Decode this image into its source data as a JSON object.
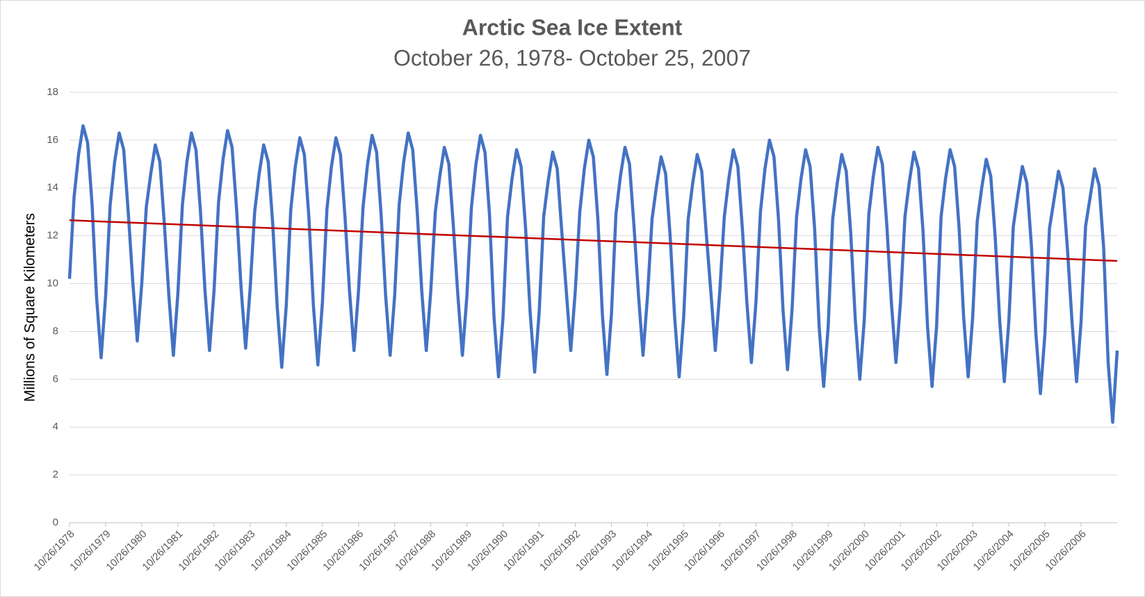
{
  "chart_data": {
    "type": "line",
    "title": "Arctic Sea Ice Extent",
    "subtitle": "October 26, 1978- October 25, 2007",
    "y_label": "Millions of Square Kilometers",
    "categories": [
      "10/26/1978",
      null,
      null,
      null,
      null,
      null,
      null,
      null,
      "10/26/1979",
      null,
      null,
      null,
      null,
      null,
      null,
      null,
      "10/26/1980",
      null,
      null,
      null,
      null,
      null,
      null,
      null,
      "10/26/1981",
      null,
      null,
      null,
      null,
      null,
      null,
      null,
      "10/26/1982",
      null,
      null,
      null,
      null,
      null,
      null,
      null,
      "10/26/1983",
      null,
      null,
      null,
      null,
      null,
      null,
      null,
      "10/26/1984",
      null,
      null,
      null,
      null,
      null,
      null,
      null,
      "10/26/1985",
      null,
      null,
      null,
      null,
      null,
      null,
      null,
      "10/26/1986",
      null,
      null,
      null,
      null,
      null,
      null,
      null,
      "10/26/1987",
      null,
      null,
      null,
      null,
      null,
      null,
      null,
      "10/26/1988",
      null,
      null,
      null,
      null,
      null,
      null,
      null,
      "10/26/1989",
      null,
      null,
      null,
      null,
      null,
      null,
      null,
      "10/26/1990",
      null,
      null,
      null,
      null,
      null,
      null,
      null,
      "10/26/1991",
      null,
      null,
      null,
      null,
      null,
      null,
      null,
      "10/26/1992",
      null,
      null,
      null,
      null,
      null,
      null,
      null,
      "10/26/1993",
      null,
      null,
      null,
      null,
      null,
      null,
      null,
      "10/26/1994",
      null,
      null,
      null,
      null,
      null,
      null,
      null,
      "10/26/1995",
      null,
      null,
      null,
      null,
      null,
      null,
      null,
      "10/26/1996",
      null,
      null,
      null,
      null,
      null,
      null,
      null,
      "10/26/1997",
      null,
      null,
      null,
      null,
      null,
      null,
      null,
      "10/26/1998",
      null,
      null,
      null,
      null,
      null,
      null,
      null,
      "10/26/1999",
      null,
      null,
      null,
      null,
      null,
      null,
      null,
      "10/26/2000",
      null,
      null,
      null,
      null,
      null,
      null,
      null,
      "10/26/2001",
      null,
      null,
      null,
      null,
      null,
      null,
      null,
      "10/26/2002",
      null,
      null,
      null,
      null,
      null,
      null,
      null,
      "10/26/2003",
      null,
      null,
      null,
      null,
      null,
      null,
      null,
      "10/26/2004",
      null,
      null,
      null,
      null,
      null,
      null,
      null,
      "10/26/2005",
      null,
      null,
      null,
      null,
      null,
      null,
      null,
      "10/26/2006",
      null,
      null,
      null,
      null,
      null,
      null,
      null,
      null
    ],
    "series": [
      {
        "color": "#4472c4",
        "values": [
          10.2,
          13.6,
          15.4,
          16.6,
          15.9,
          13.3,
          9.4,
          6.9,
          9.5,
          13.3,
          15.1,
          16.3,
          15.6,
          13.0,
          10.1,
          7.6,
          10.0,
          13.2,
          14.6,
          15.8,
          15.1,
          12.5,
          9.5,
          7.0,
          9.6,
          13.3,
          15.1,
          16.3,
          15.6,
          13.0,
          9.7,
          7.2,
          9.7,
          13.4,
          15.2,
          16.4,
          15.7,
          13.1,
          9.8,
          7.3,
          9.8,
          13.0,
          14.6,
          15.8,
          15.1,
          12.5,
          9.0,
          6.5,
          9.1,
          13.1,
          14.9,
          16.1,
          15.4,
          12.8,
          9.1,
          6.6,
          9.2,
          13.1,
          14.9,
          16.1,
          15.4,
          12.8,
          9.7,
          7.2,
          9.7,
          13.2,
          15.0,
          16.2,
          15.5,
          12.9,
          9.5,
          7.0,
          9.5,
          13.3,
          15.1,
          16.3,
          15.6,
          13.0,
          9.7,
          7.2,
          9.7,
          13.0,
          14.5,
          15.7,
          15.0,
          12.4,
          9.5,
          7.0,
          9.5,
          13.2,
          15.0,
          16.2,
          15.5,
          12.9,
          8.6,
          6.1,
          8.6,
          12.8,
          14.4,
          15.6,
          14.9,
          12.3,
          8.8,
          6.3,
          8.8,
          12.8,
          14.3,
          15.5,
          14.8,
          12.2,
          9.7,
          7.2,
          9.7,
          13.0,
          14.8,
          16.0,
          15.3,
          12.7,
          8.7,
          6.2,
          8.7,
          12.9,
          14.5,
          15.7,
          15.0,
          12.4,
          9.5,
          7.0,
          9.5,
          12.7,
          14.1,
          15.3,
          14.6,
          12.0,
          8.6,
          6.1,
          8.6,
          12.7,
          14.2,
          15.4,
          14.7,
          12.1,
          9.7,
          7.2,
          9.7,
          12.8,
          14.4,
          15.6,
          14.9,
          12.3,
          9.2,
          6.7,
          9.2,
          13.0,
          14.8,
          16.0,
          15.3,
          12.7,
          8.9,
          6.4,
          8.9,
          12.8,
          14.4,
          15.6,
          14.9,
          12.3,
          8.2,
          5.7,
          8.2,
          12.7,
          14.2,
          15.4,
          14.7,
          12.1,
          8.5,
          6.0,
          8.5,
          12.9,
          14.5,
          15.7,
          15.0,
          12.4,
          9.2,
          6.7,
          9.2,
          12.8,
          14.3,
          15.5,
          14.8,
          12.2,
          8.2,
          5.7,
          8.2,
          12.8,
          14.4,
          15.6,
          14.9,
          12.3,
          8.6,
          6.1,
          8.6,
          12.6,
          14.0,
          15.2,
          14.5,
          11.9,
          8.4,
          5.9,
          8.4,
          12.4,
          13.7,
          14.9,
          14.2,
          11.6,
          7.9,
          5.4,
          7.9,
          12.3,
          13.5,
          14.7,
          14.0,
          11.4,
          8.4,
          5.9,
          8.4,
          12.4,
          13.6,
          14.8,
          14.1,
          11.5,
          6.7,
          4.2,
          7.2
        ]
      }
    ],
    "trendline": {
      "color": "#c00000",
      "start": 12.65,
      "end": 10.95
    },
    "ylim": [
      0,
      18
    ],
    "yticks": [
      0,
      2,
      4,
      6,
      8,
      10,
      12,
      14,
      16,
      18
    ],
    "grid": true
  }
}
